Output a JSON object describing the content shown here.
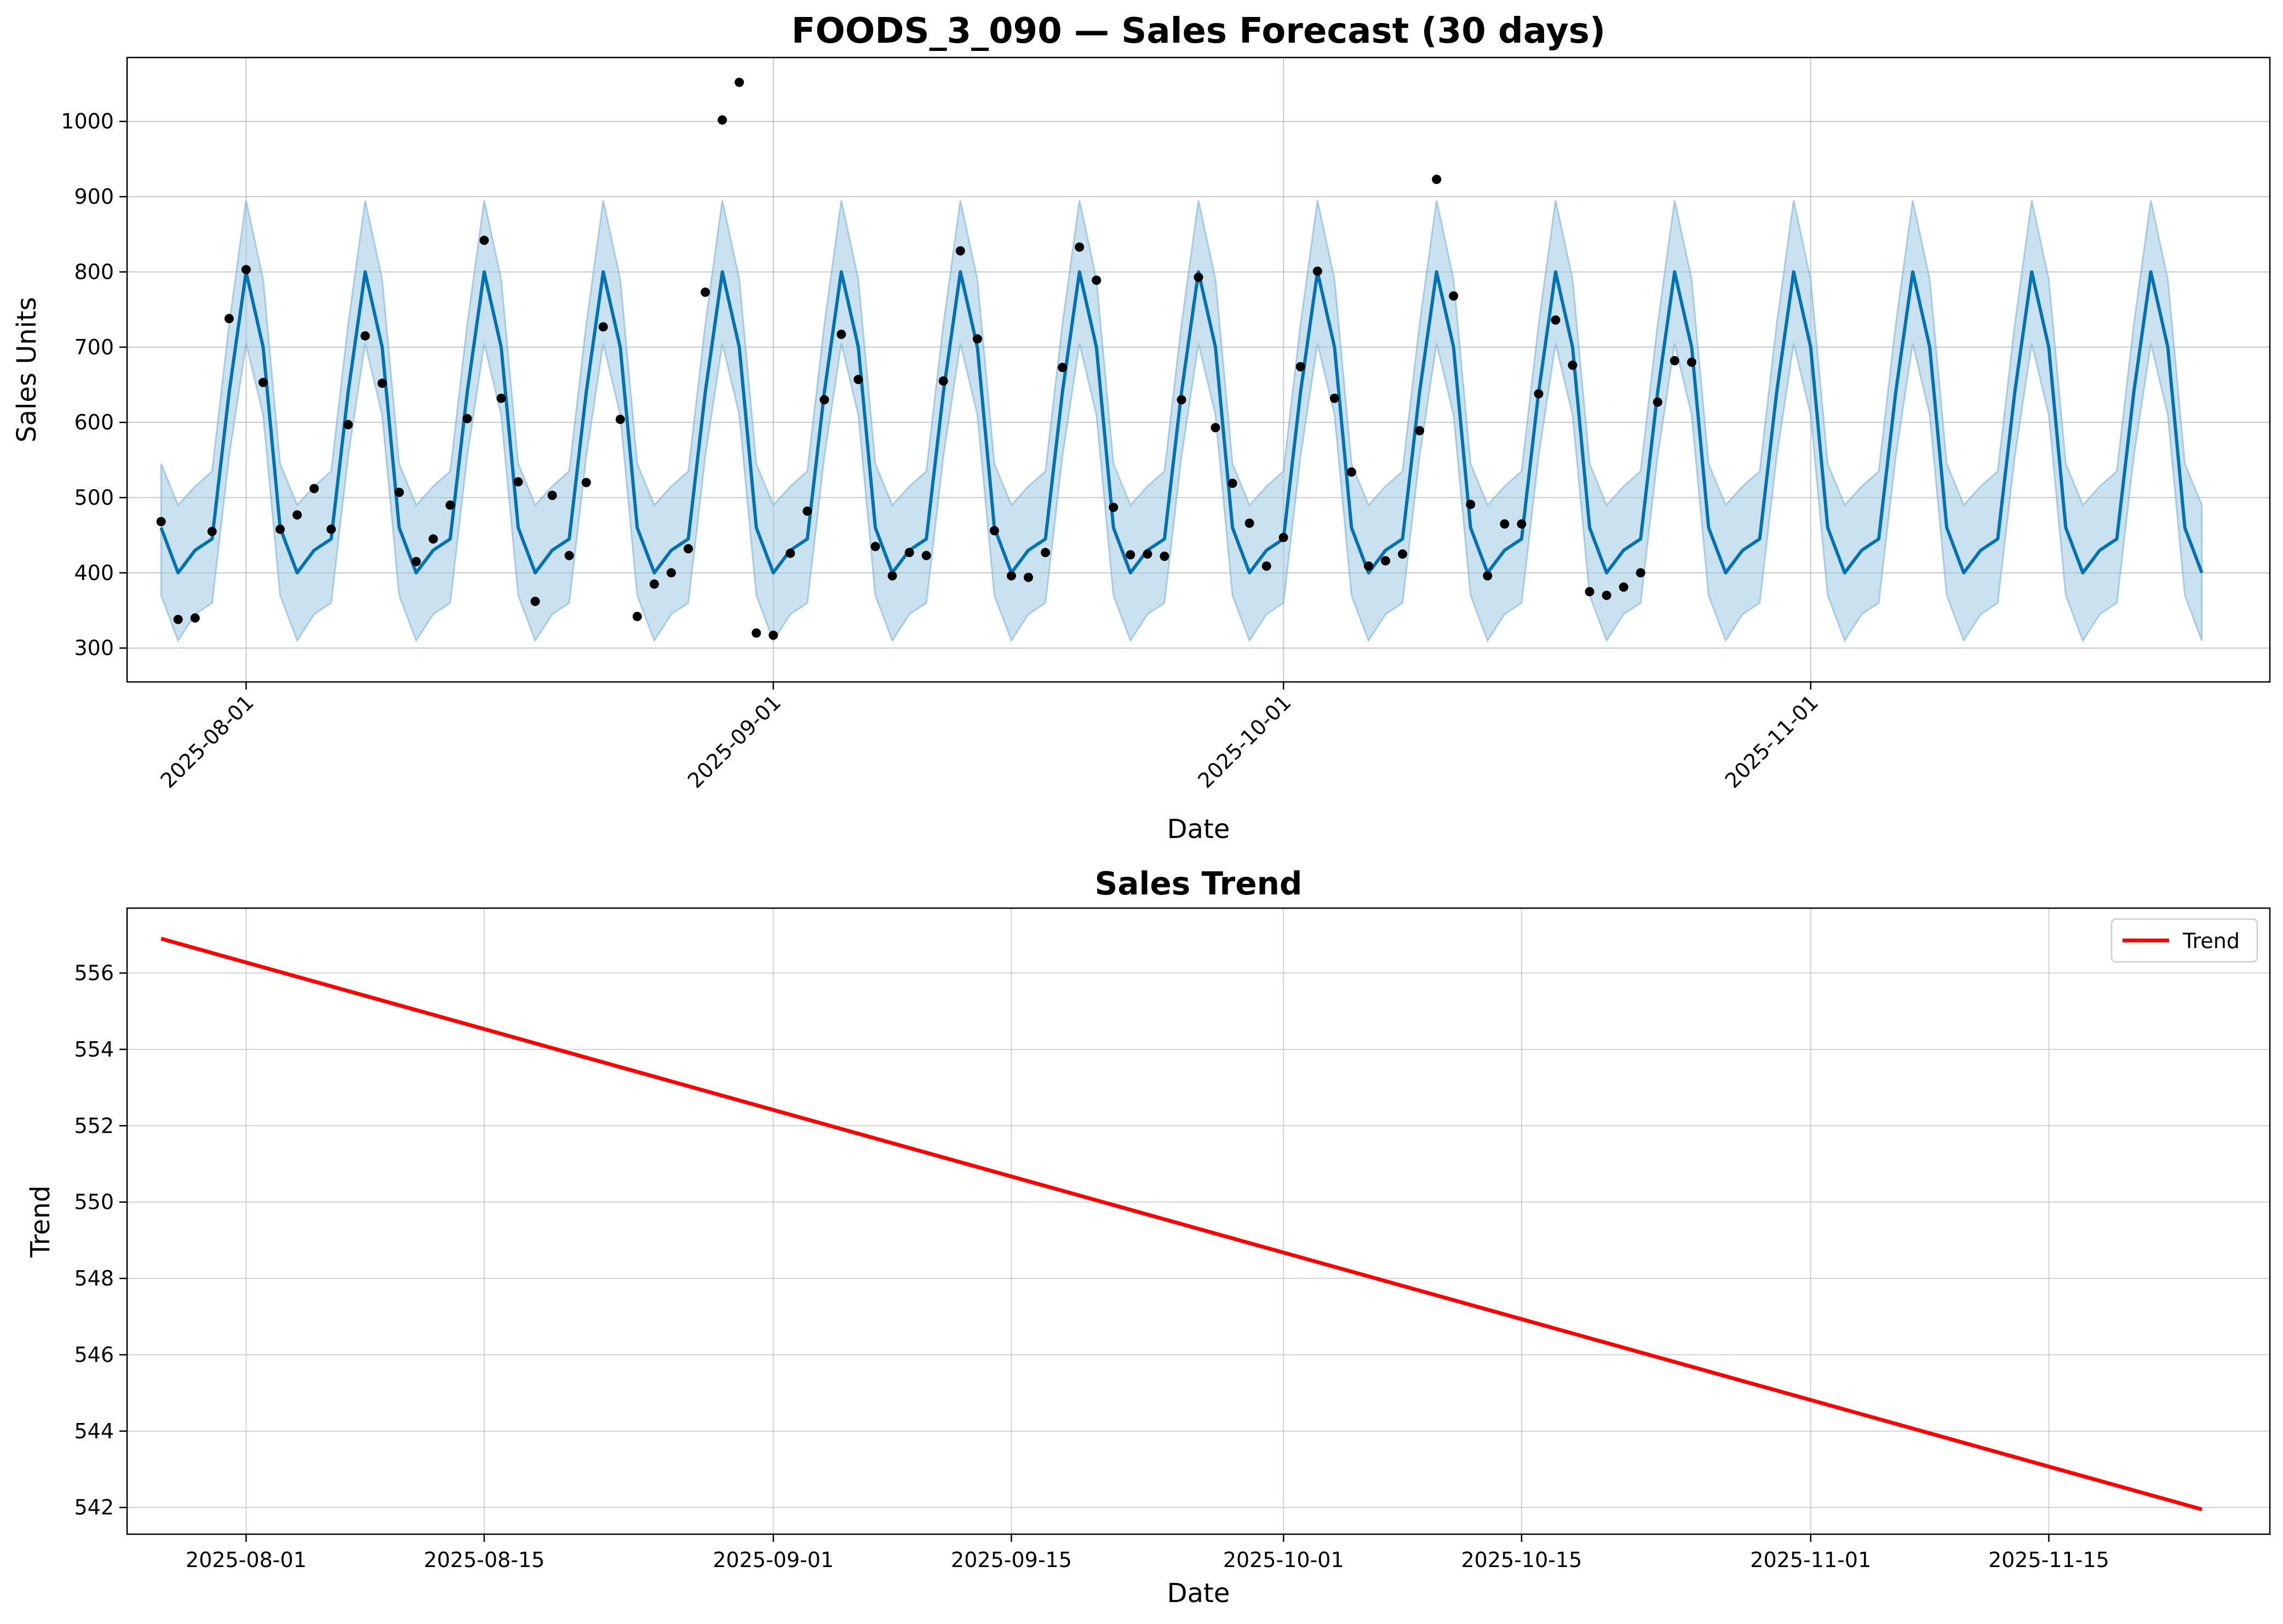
{
  "chart_data": [
    {
      "type": "line",
      "title": "FOODS_3_090 — Sales Forecast (30 days)",
      "xlabel": "Date",
      "ylabel": "Sales Units",
      "x_start": "2025-07-27",
      "x_end": "2025-11-24",
      "xlim": [
        "2025-07-25",
        "2025-11-28"
      ],
      "ylim": [
        255,
        1085
      ],
      "yticks": [
        300,
        400,
        500,
        600,
        700,
        800,
        900,
        1000
      ],
      "xticks": [
        "2025-08-01",
        "2025-09-01",
        "2025-10-01",
        "2025-11-01"
      ],
      "grid": true,
      "colors": {
        "forecast": "#0072B2",
        "band": "#9ecae1",
        "observed": "#000000"
      },
      "series": [
        {
          "kind": "forecast",
          "weekly_pattern": [
            460,
            400,
            430,
            445,
            640,
            800,
            700
          ],
          "band_upper": [
            545,
            490,
            515,
            535,
            730,
            895,
            790
          ],
          "band_lower": [
            370,
            310,
            345,
            360,
            555,
            705,
            610
          ]
        },
        {
          "kind": "observed",
          "values": [
            468,
            338,
            340,
            455,
            738,
            803,
            653,
            458,
            477,
            512,
            458,
            597,
            715,
            652,
            507,
            415,
            445,
            490,
            605,
            842,
            632,
            521,
            362,
            503,
            423,
            520,
            727,
            604,
            342,
            385,
            400,
            432,
            773,
            1002,
            1052,
            320,
            317,
            426,
            482,
            630,
            717,
            657,
            435,
            396,
            427,
            423,
            655,
            828,
            711,
            456,
            396,
            394,
            427,
            673,
            833,
            789,
            487,
            424,
            425,
            422,
            630,
            793,
            593,
            519,
            466,
            409,
            447,
            674,
            801,
            632,
            534,
            409,
            416,
            425,
            589,
            923,
            768,
            491,
            396,
            465,
            465,
            638,
            736,
            676,
            375,
            370,
            381,
            400,
            627,
            682,
            680
          ]
        }
      ]
    },
    {
      "type": "line",
      "title": "Sales Trend",
      "xlabel": "Date",
      "ylabel": "Trend",
      "ylim": [
        541.3,
        557.7
      ],
      "yticks": [
        542,
        544,
        546,
        548,
        550,
        552,
        554,
        556
      ],
      "xticks": [
        "2025-08-01",
        "2025-08-15",
        "2025-09-01",
        "2025-09-15",
        "2025-10-01",
        "2025-10-15",
        "2025-11-01",
        "2025-11-15"
      ],
      "grid": true,
      "legend_position": "top-right",
      "series": [
        {
          "name": "Trend",
          "color": "#ff0000",
          "x": [
            "2025-07-27",
            "2025-11-24"
          ],
          "values": [
            556.9,
            541.95
          ]
        }
      ]
    }
  ]
}
